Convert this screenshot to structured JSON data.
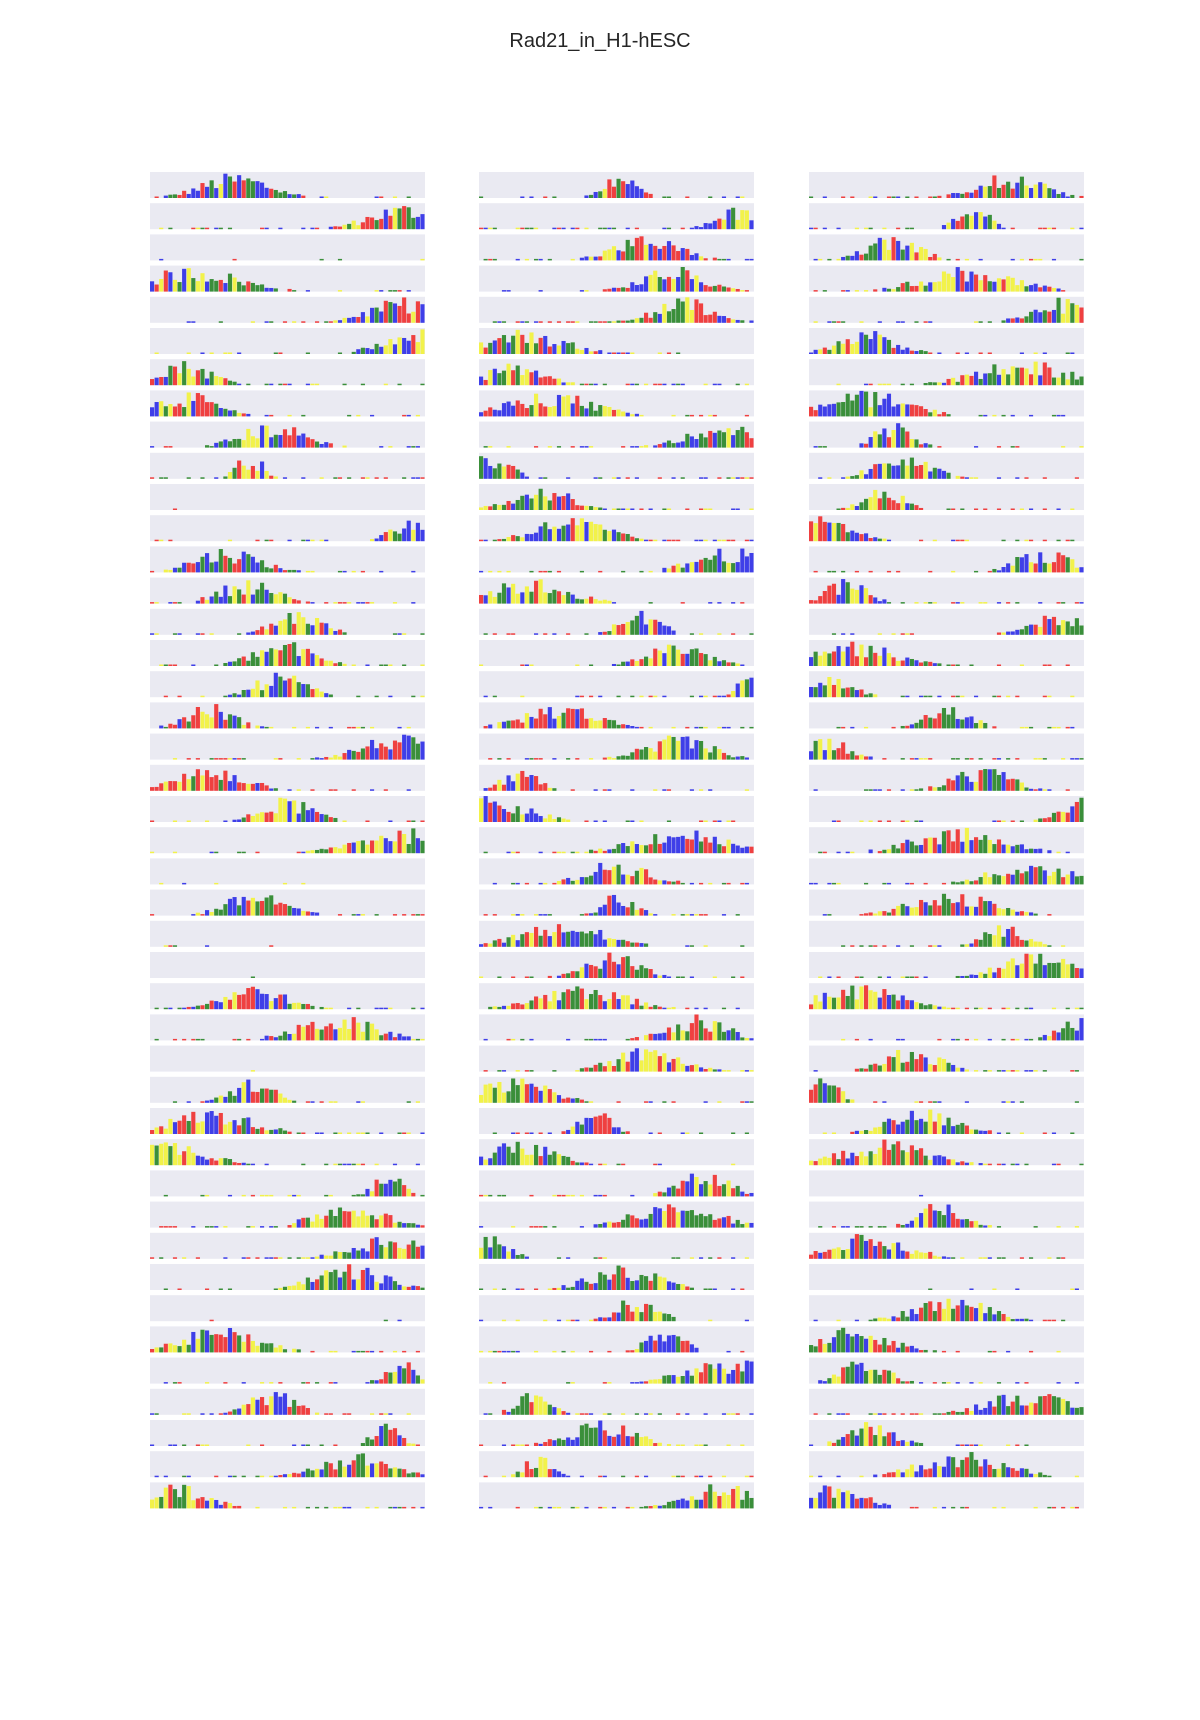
{
  "title": "Rad21_in_H1-hESC",
  "colors": {
    "A": "#3a8f3a",
    "C": "#3f3fe8",
    "G": "#f2f24a",
    "T": "#ef4040",
    "panel": "#eaeaf2"
  },
  "chart_data": {
    "type": "bar",
    "title": "Rad21_in_H1-hESC",
    "layout": "grid of 3 columns x 43 rows of sequence logo panels",
    "columns": 3,
    "rows": 43,
    "positions_per_panel": 60,
    "letters": [
      "A",
      "C",
      "G",
      "T"
    ],
    "ylim": [
      0,
      1
    ],
    "grid": false,
    "legend": "none"
  }
}
